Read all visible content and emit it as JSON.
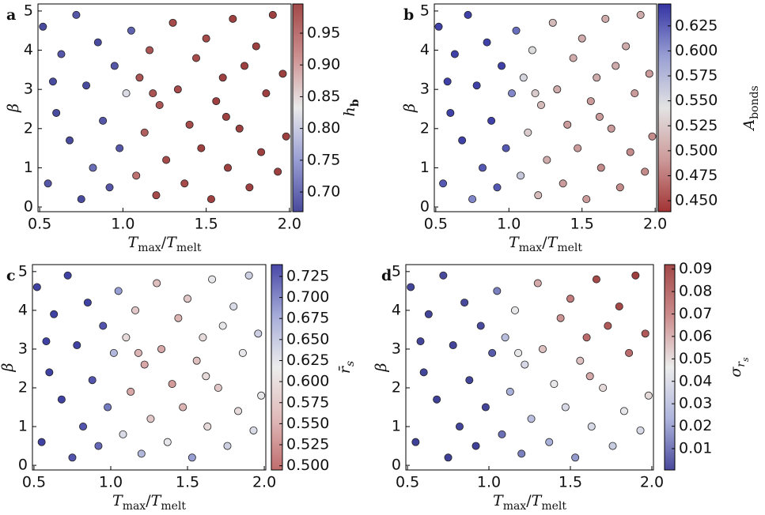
{
  "chart_data": [
    {
      "type": "scatter",
      "panel": "a",
      "xlabel": [
        {
          "text": "T",
          "italic": true
        },
        {
          "text": "max",
          "sub": true
        },
        {
          "text": "/"
        },
        {
          "text": "T",
          "italic": true
        },
        {
          "text": "melt",
          "sub": true
        }
      ],
      "ylabel": "β",
      "x": [
        0.52,
        0.55,
        0.6,
        0.63,
        0.68,
        0.72,
        0.75,
        0.78,
        0.82,
        0.85,
        0.88,
        0.92,
        0.95,
        0.98,
        1.02,
        1.05,
        1.08,
        1.1,
        1.13,
        1.16,
        1.2,
        1.22,
        1.26,
        1.3,
        1.33,
        1.37,
        1.4,
        1.44,
        1.47,
        1.5,
        1.53,
        1.56,
        1.6,
        1.63,
        1.66,
        1.7,
        1.73,
        1.76,
        1.8,
        1.83,
        1.86,
        1.9,
        1.93,
        1.96,
        1.98,
        0.58,
        1.18,
        1.62
      ],
      "y": [
        4.6,
        0.6,
        2.4,
        3.9,
        1.7,
        4.9,
        0.2,
        3.1,
        1.0,
        4.2,
        2.2,
        0.5,
        3.6,
        1.5,
        2.9,
        4.5,
        0.8,
        3.3,
        1.9,
        4.0,
        0.3,
        2.6,
        1.2,
        4.7,
        3.0,
        0.6,
        2.1,
        3.8,
        1.5,
        4.3,
        0.2,
        2.7,
        3.3,
        1.0,
        4.8,
        2.0,
        3.6,
        0.5,
        4.1,
        1.4,
        2.9,
        4.9,
        0.9,
        3.4,
        1.8,
        3.2,
        2.9,
        2.3
      ],
      "c": [
        0.69,
        0.7,
        0.69,
        0.7,
        0.69,
        0.7,
        0.69,
        0.69,
        0.72,
        0.69,
        0.7,
        0.7,
        0.7,
        0.7,
        0.82,
        0.71,
        0.93,
        0.96,
        0.95,
        0.96,
        0.97,
        0.96,
        0.97,
        0.97,
        0.97,
        0.97,
        0.97,
        0.97,
        0.98,
        0.97,
        0.98,
        0.98,
        0.98,
        0.98,
        0.98,
        0.98,
        0.98,
        0.98,
        0.98,
        0.98,
        0.98,
        0.98,
        0.98,
        0.98,
        0.98,
        0.69,
        0.96,
        0.98
      ],
      "xlim": [
        0.49,
        2.01
      ],
      "ylim": [
        -0.12,
        5.18
      ],
      "xticks": [
        0.5,
        {
          "value": 1.0,
          "label": "1.0"
        },
        1.5,
        {
          "value": 2.0,
          "label": "2.0"
        }
      ],
      "yticks": [
        0,
        1,
        2,
        3,
        4,
        5
      ],
      "colorbar": {
        "label": [
          {
            "text": "h",
            "italic": true
          },
          {
            "text": "b",
            "sub": true,
            "bold": true
          }
        ],
        "clim": [
          0.669,
          0.996
        ],
        "ticks": [
          {
            "value": 0.7,
            "label": "0.70"
          },
          0.75,
          {
            "value": 0.8,
            "label": "0.80"
          },
          0.85,
          {
            "value": 0.9,
            "label": "0.90"
          },
          0.95
        ],
        "cmap": [
          "#1c1c84",
          "#7f86c8",
          "#e5e5e5",
          "#c07373",
          "#8b1a1a"
        ]
      }
    },
    {
      "type": "scatter",
      "panel": "b",
      "xlabel": [
        {
          "text": "T",
          "italic": true
        },
        {
          "text": "max",
          "sub": true
        },
        {
          "text": "/"
        },
        {
          "text": "T",
          "italic": true
        },
        {
          "text": "melt",
          "sub": true
        }
      ],
      "ylabel": "β",
      "x": [
        0.52,
        0.55,
        0.6,
        0.63,
        0.68,
        0.72,
        0.75,
        0.78,
        0.82,
        0.85,
        0.88,
        0.92,
        0.95,
        0.98,
        1.02,
        1.05,
        1.08,
        1.1,
        1.13,
        1.16,
        1.2,
        1.22,
        1.26,
        1.3,
        1.33,
        1.37,
        1.4,
        1.44,
        1.47,
        1.5,
        1.53,
        1.56,
        1.6,
        1.63,
        1.66,
        1.7,
        1.73,
        1.76,
        1.8,
        1.83,
        1.86,
        1.9,
        1.93,
        1.96,
        1.98,
        0.58,
        1.18,
        1.62
      ],
      "y": [
        4.6,
        0.6,
        2.4,
        3.9,
        1.7,
        4.9,
        0.2,
        3.1,
        1.0,
        4.2,
        2.2,
        0.5,
        3.6,
        1.5,
        2.9,
        4.5,
        0.8,
        3.3,
        1.9,
        4.0,
        0.3,
        2.6,
        1.2,
        4.7,
        3.0,
        0.6,
        2.1,
        3.8,
        1.5,
        4.3,
        0.2,
        2.7,
        3.3,
        1.0,
        4.8,
        2.0,
        3.6,
        0.5,
        4.1,
        1.4,
        2.9,
        4.9,
        0.9,
        3.4,
        1.8,
        3.2,
        2.9,
        2.3
      ],
      "c": [
        0.63,
        0.62,
        0.63,
        0.63,
        0.63,
        0.63,
        0.6,
        0.63,
        0.62,
        0.63,
        0.63,
        0.62,
        0.63,
        0.62,
        0.6,
        0.61,
        0.56,
        0.55,
        0.53,
        0.54,
        0.52,
        0.52,
        0.51,
        0.52,
        0.51,
        0.5,
        0.5,
        0.51,
        0.5,
        0.51,
        0.5,
        0.5,
        0.51,
        0.49,
        0.51,
        0.5,
        0.51,
        0.49,
        0.51,
        0.49,
        0.5,
        0.51,
        0.49,
        0.5,
        0.49,
        0.63,
        0.53,
        0.5
      ],
      "xlim": [
        0.49,
        2.01
      ],
      "ylim": [
        -0.12,
        5.18
      ],
      "xticks": [
        0.5,
        {
          "value": 1.0,
          "label": "1.0"
        },
        1.5,
        {
          "value": 2.0,
          "label": "2.0"
        }
      ],
      "yticks": [
        0,
        1,
        2,
        3,
        4,
        5
      ],
      "colorbar": {
        "label": [
          {
            "text": "A",
            "italic": true
          },
          {
            "text": "bonds",
            "sub": true
          }
        ],
        "clim": [
          0.439,
          0.647
        ],
        "ticks": [
          {
            "value": 0.45,
            "label": "0.450"
          },
          0.475,
          {
            "value": 0.5,
            "label": "0.500"
          },
          0.525,
          {
            "value": 0.55,
            "label": "0.550"
          },
          0.575,
          {
            "value": 0.6,
            "label": "0.600"
          },
          0.625
        ],
        "cmap": [
          "#8b0000",
          "#c08080",
          "#dcdcdc",
          "#7f86c8",
          "#00008b"
        ]
      }
    },
    {
      "type": "scatter",
      "panel": "c",
      "xlabel": [
        {
          "text": "T",
          "italic": true
        },
        {
          "text": "max",
          "sub": true
        },
        {
          "text": "/"
        },
        {
          "text": "T",
          "italic": true
        },
        {
          "text": "melt",
          "sub": true
        }
      ],
      "ylabel": "β",
      "x": [
        0.52,
        0.55,
        0.6,
        0.63,
        0.68,
        0.72,
        0.75,
        0.78,
        0.82,
        0.85,
        0.88,
        0.92,
        0.95,
        0.98,
        1.02,
        1.05,
        1.08,
        1.1,
        1.13,
        1.16,
        1.2,
        1.22,
        1.26,
        1.3,
        1.33,
        1.37,
        1.4,
        1.44,
        1.47,
        1.5,
        1.53,
        1.56,
        1.6,
        1.63,
        1.66,
        1.7,
        1.73,
        1.76,
        1.8,
        1.83,
        1.86,
        1.9,
        1.93,
        1.96,
        1.98,
        0.58,
        1.18,
        1.62
      ],
      "y": [
        4.6,
        0.6,
        2.4,
        3.9,
        1.7,
        4.9,
        0.2,
        3.1,
        1.0,
        4.2,
        2.2,
        0.5,
        3.6,
        1.5,
        2.9,
        4.5,
        0.8,
        3.3,
        1.9,
        4.0,
        0.3,
        2.6,
        1.2,
        4.7,
        3.0,
        0.6,
        2.1,
        3.8,
        1.5,
        4.3,
        0.2,
        2.7,
        3.3,
        1.0,
        4.8,
        2.0,
        3.6,
        0.5,
        4.1,
        1.4,
        2.9,
        4.9,
        0.9,
        3.4,
        1.8,
        3.2,
        2.9,
        2.3
      ],
      "c": [
        0.73,
        0.73,
        0.73,
        0.73,
        0.73,
        0.73,
        0.72,
        0.73,
        0.72,
        0.73,
        0.72,
        0.71,
        0.72,
        0.7,
        0.66,
        0.68,
        0.63,
        0.6,
        0.55,
        0.58,
        0.66,
        0.55,
        0.58,
        0.57,
        0.55,
        0.62,
        0.54,
        0.56,
        0.56,
        0.58,
        0.68,
        0.57,
        0.6,
        0.6,
        0.62,
        0.58,
        0.62,
        0.64,
        0.63,
        0.6,
        0.62,
        0.64,
        0.63,
        0.64,
        0.62,
        0.73,
        0.56,
        0.6
      ],
      "xlim": [
        0.49,
        2.01
      ],
      "ylim": [
        -0.12,
        5.18
      ],
      "xticks": [
        0.5,
        {
          "value": 1.0,
          "label": "1.0"
        },
        1.5,
        {
          "value": 2.0,
          "label": "2.0"
        }
      ],
      "yticks": [
        0,
        1,
        2,
        3,
        4,
        5
      ],
      "colorbar": {
        "label": [
          {
            "text": "r̄",
            "italic": true
          },
          {
            "text": "s",
            "sub": true,
            "italic": true
          }
        ],
        "clim": [
          0.495,
          0.739
        ],
        "ticks": [
          {
            "value": 0.5,
            "label": "0.500"
          },
          0.525,
          {
            "value": 0.55,
            "label": "0.550"
          },
          0.575,
          {
            "value": 0.6,
            "label": "0.600"
          },
          0.625,
          {
            "value": 0.65,
            "label": "0.650"
          },
          0.675,
          {
            "value": 0.7,
            "label": "0.700"
          },
          0.725
        ],
        "cmap": [
          "#b04848",
          "#d8a8a8",
          "#e8e8e8",
          "#9098d0",
          "#1a1a90"
        ]
      }
    },
    {
      "type": "scatter",
      "panel": "d",
      "xlabel": [
        {
          "text": "T",
          "italic": true
        },
        {
          "text": "max",
          "sub": true
        },
        {
          "text": "/"
        },
        {
          "text": "T",
          "italic": true
        },
        {
          "text": "melt",
          "sub": true
        }
      ],
      "ylabel": "β",
      "x": [
        0.52,
        0.55,
        0.6,
        0.63,
        0.68,
        0.72,
        0.75,
        0.78,
        0.82,
        0.85,
        0.88,
        0.92,
        0.95,
        0.98,
        1.02,
        1.05,
        1.08,
        1.1,
        1.13,
        1.16,
        1.2,
        1.22,
        1.26,
        1.3,
        1.33,
        1.37,
        1.4,
        1.44,
        1.47,
        1.5,
        1.53,
        1.56,
        1.6,
        1.63,
        1.66,
        1.7,
        1.73,
        1.76,
        1.8,
        1.83,
        1.86,
        1.9,
        1.93,
        1.96,
        1.98,
        0.58,
        1.18,
        1.62
      ],
      "y": [
        4.6,
        0.6,
        2.4,
        3.9,
        1.7,
        4.9,
        0.2,
        3.1,
        1.0,
        4.2,
        2.2,
        0.5,
        3.6,
        1.5,
        2.9,
        4.5,
        0.8,
        3.3,
        1.9,
        4.0,
        0.3,
        2.6,
        1.2,
        4.7,
        3.0,
        0.6,
        2.1,
        3.8,
        1.5,
        4.3,
        0.2,
        2.7,
        3.3,
        1.0,
        4.8,
        2.0,
        3.6,
        0.5,
        4.1,
        1.4,
        2.9,
        4.9,
        0.9,
        3.4,
        1.8,
        3.2,
        2.9,
        2.3
      ],
      "c": [
        0.004,
        0.003,
        0.004,
        0.004,
        0.003,
        0.005,
        0.003,
        0.004,
        0.004,
        0.005,
        0.004,
        0.003,
        0.005,
        0.004,
        0.008,
        0.015,
        0.012,
        0.03,
        0.025,
        0.045,
        0.015,
        0.04,
        0.03,
        0.06,
        0.055,
        0.025,
        0.045,
        0.065,
        0.04,
        0.07,
        0.02,
        0.055,
        0.075,
        0.04,
        0.085,
        0.05,
        0.08,
        0.035,
        0.085,
        0.045,
        0.075,
        0.088,
        0.04,
        0.08,
        0.05,
        0.004,
        0.045,
        0.06
      ],
      "xlim": [
        0.49,
        2.01
      ],
      "ylim": [
        -0.12,
        5.18
      ],
      "xticks": [
        0.5,
        {
          "value": 1.0,
          "label": "1.0"
        },
        1.5,
        {
          "value": 2.0,
          "label": "2.0"
        }
      ],
      "yticks": [
        0,
        1,
        2,
        3,
        4,
        5
      ],
      "colorbar": {
        "label": [
          {
            "text": "σ",
            "italic": true
          },
          {
            "text": "r",
            "sub": true,
            "italic": true
          },
          {
            "text": "s",
            "subsub": true,
            "italic": true
          }
        ],
        "clim": [
          0.0005,
          0.092
        ],
        "ticks": [
          0.01,
          0.02,
          0.03,
          0.04,
          0.05,
          0.06,
          0.07,
          0.08,
          0.09
        ],
        "cmap": [
          "#1c1c84",
          "#9aa2d4",
          "#e8e8e8",
          "#c07070",
          "#8b1a1a"
        ]
      }
    }
  ]
}
